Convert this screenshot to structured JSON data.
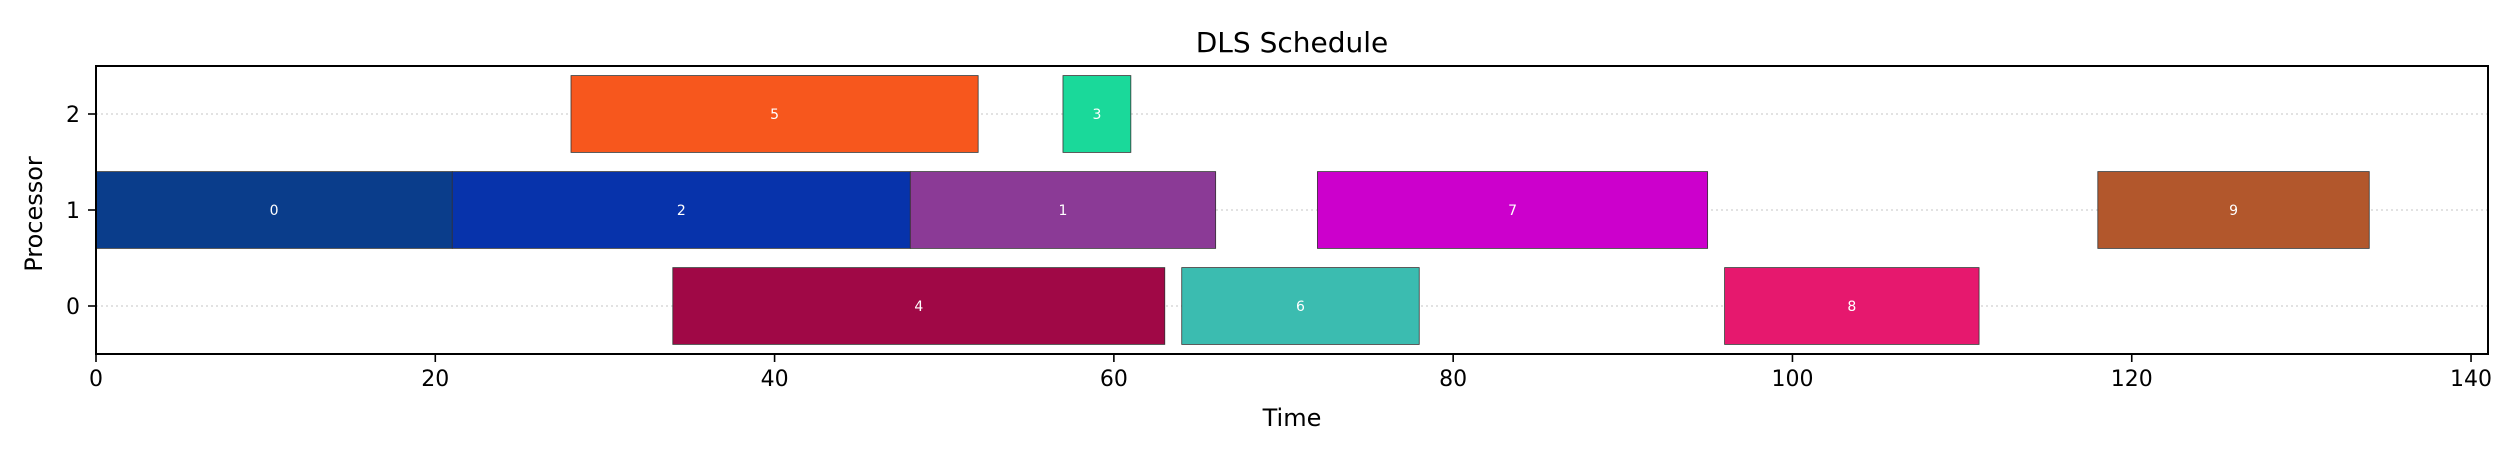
{
  "chart_data": {
    "type": "gantt",
    "title": "DLS Schedule",
    "xlabel": "Time",
    "ylabel": "Processor",
    "xlim": [
      0,
      141
    ],
    "ylim": [
      -0.5,
      2.5
    ],
    "x_ticks": [
      0,
      20,
      40,
      60,
      80,
      100,
      120,
      140
    ],
    "y_ticks": [
      0,
      1,
      2
    ],
    "grid": "horizontal dotted",
    "tasks": [
      {
        "label": "0",
        "processor": 1,
        "start": 0,
        "end": 21,
        "color": "#0a3d8b"
      },
      {
        "label": "2",
        "processor": 1,
        "start": 21,
        "end": 48,
        "color": "#0733ab"
      },
      {
        "label": "1",
        "processor": 1,
        "start": 48,
        "end": 66,
        "color": "#8b3a96"
      },
      {
        "label": "7",
        "processor": 1,
        "start": 72,
        "end": 95,
        "color": "#cc00cc"
      },
      {
        "label": "9",
        "processor": 1,
        "start": 118,
        "end": 134,
        "color": "#b2572c"
      },
      {
        "label": "5",
        "processor": 2,
        "start": 28,
        "end": 52,
        "color": "#f7571d"
      },
      {
        "label": "3",
        "processor": 2,
        "start": 57,
        "end": 61,
        "color": "#1ad99a"
      },
      {
        "label": "4",
        "processor": 0,
        "start": 34,
        "end": 63,
        "color": "#a00846"
      },
      {
        "label": "6",
        "processor": 0,
        "start": 64,
        "end": 78,
        "color": "#3bbcb0"
      },
      {
        "label": "8",
        "processor": 0,
        "start": 96,
        "end": 111,
        "color": "#e6186e"
      }
    ]
  }
}
